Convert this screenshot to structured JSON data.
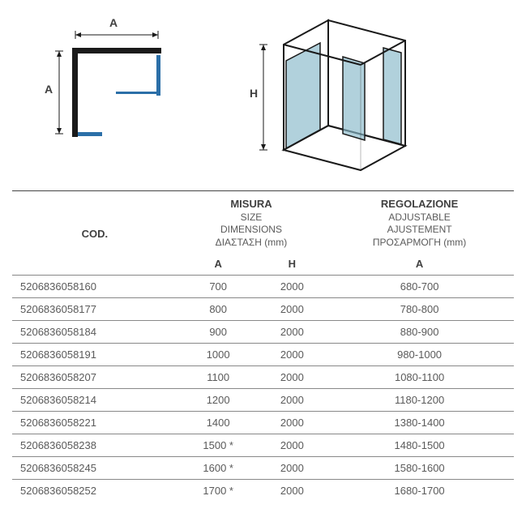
{
  "diagram2d": {
    "label_top": "A",
    "label_left": "A",
    "stroke_main": "#1a1a1a",
    "stroke_accent": "#2b6fa8"
  },
  "diagram3d": {
    "label_left": "H",
    "stroke": "#1a1a1a",
    "fill_panels": "#87b8c9",
    "fill_panels_opacity": 0.65
  },
  "table": {
    "header": {
      "cod": "COD.",
      "size": {
        "lines": [
          "MISURA",
          "SIZE",
          "DIMENSIONS",
          "ΔΙΑΣΤΑΣΗ (mm)"
        ],
        "sub_a": "A",
        "sub_h": "H"
      },
      "adj": {
        "lines": [
          "REGOLAZIONE",
          "ADJUSTABLE",
          "AJUSTEMENT",
          "ΠΡΟΣΑΡΜΟΓΗ (mm)"
        ],
        "sub_a": "A"
      }
    },
    "rows": [
      {
        "code": "5206836058160",
        "a": "700",
        "h": "2000",
        "adj": "680-700"
      },
      {
        "code": "5206836058177",
        "a": "800",
        "h": "2000",
        "adj": "780-800"
      },
      {
        "code": "5206836058184",
        "a": "900",
        "h": "2000",
        "adj": "880-900"
      },
      {
        "code": "5206836058191",
        "a": "1000",
        "h": "2000",
        "adj": "980-1000"
      },
      {
        "code": "5206836058207",
        "a": "1100",
        "h": "2000",
        "adj": "1080-1100"
      },
      {
        "code": "5206836058214",
        "a": "1200",
        "h": "2000",
        "adj": "1180-1200"
      },
      {
        "code": "5206836058221",
        "a": "1400",
        "h": "2000",
        "adj": "1380-1400"
      },
      {
        "code": "5206836058238",
        "a": "1500 *",
        "h": "2000",
        "adj": "1480-1500"
      },
      {
        "code": "5206836058245",
        "a": "1600 *",
        "h": "2000",
        "adj": "1580-1600"
      },
      {
        "code": "5206836058252",
        "a": "1700 *",
        "h": "2000",
        "adj": "1680-1700"
      }
    ]
  },
  "colors": {
    "text": "#5a5a5a",
    "text_bold": "#404040",
    "border": "#888",
    "border_top": "#444"
  }
}
